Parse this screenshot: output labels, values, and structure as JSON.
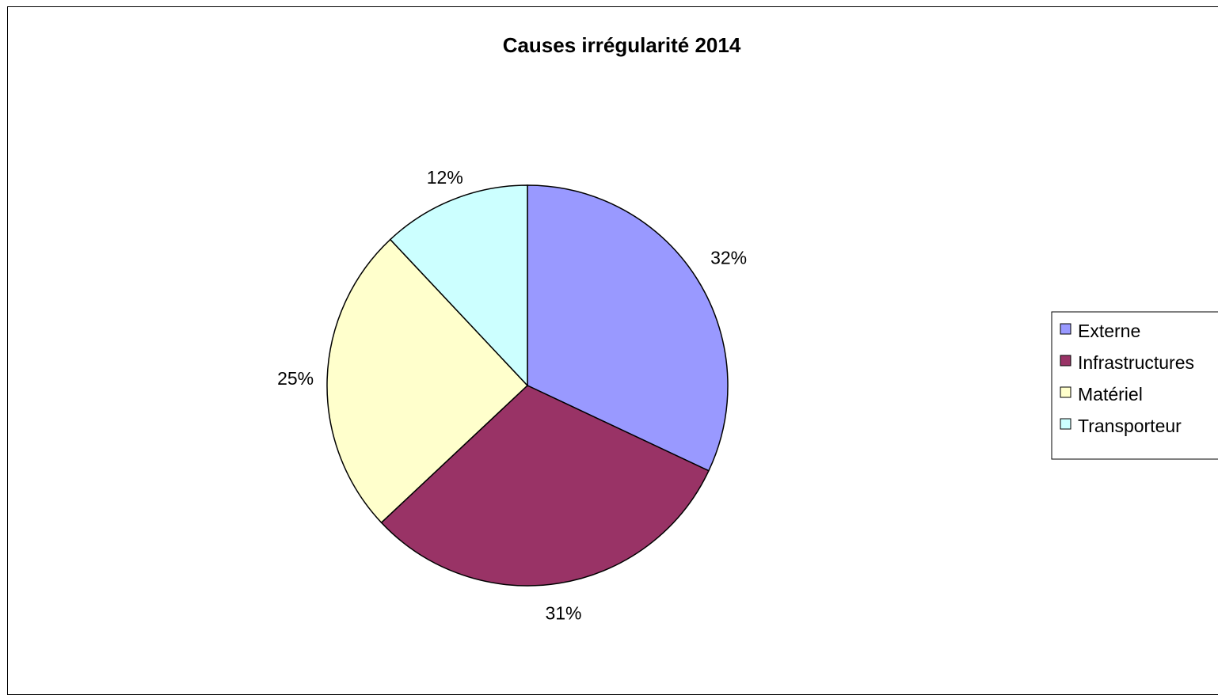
{
  "chart_data": {
    "type": "pie",
    "title": "Causes irrégularité 2014",
    "categories": [
      "Externe",
      "Infrastructures",
      "Matériel",
      "Transporteur"
    ],
    "values": [
      32,
      31,
      25,
      12
    ],
    "labels": [
      "32%",
      "31%",
      "25%",
      "12%"
    ],
    "colors": [
      "#9999FF",
      "#993366",
      "#FFFFCC",
      "#CCFFFF"
    ],
    "legend": {
      "position": "right",
      "entries": [
        "Externe",
        "Infrastructures",
        "Matériel",
        "Transporteur"
      ]
    }
  }
}
